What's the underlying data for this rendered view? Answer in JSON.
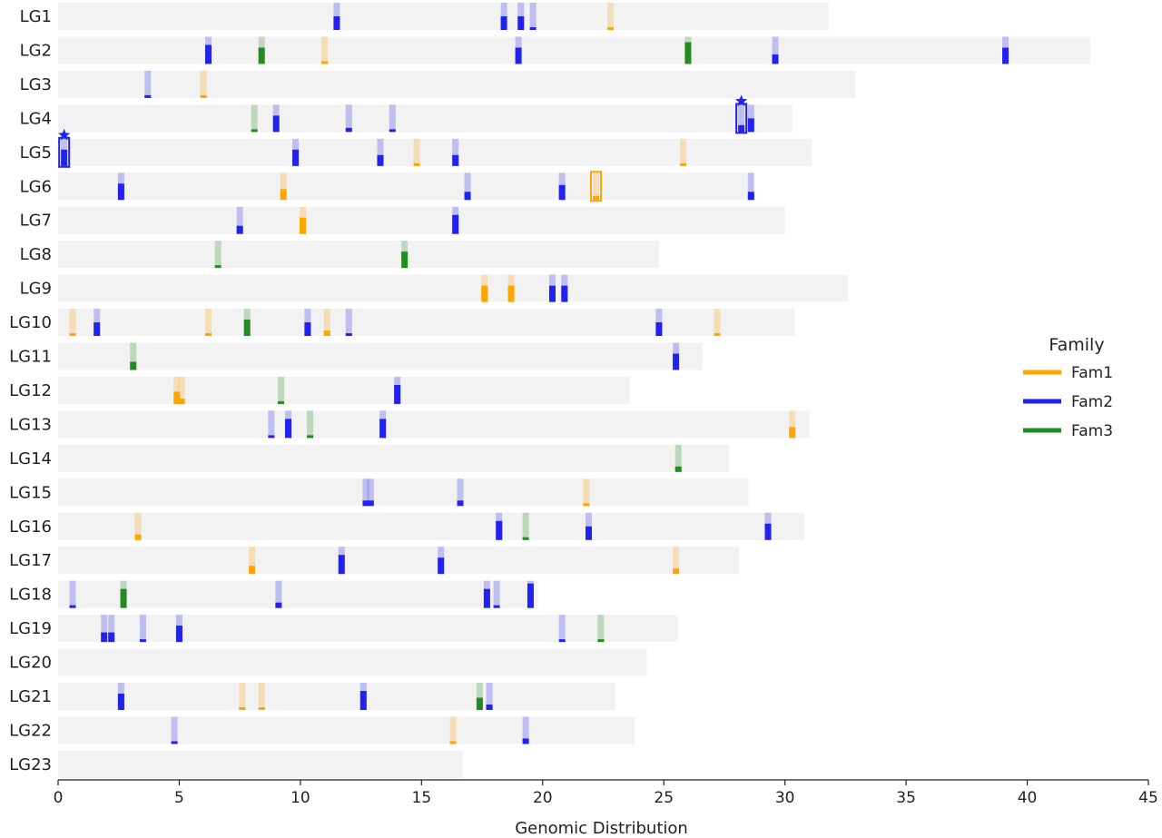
{
  "chart_data": {
    "type": "bar",
    "subtype": "chromosome-ideogram",
    "xlabel": "Genomic Distribution",
    "ylabel": "",
    "xlim": [
      0,
      45
    ],
    "xticks": [
      0,
      5,
      10,
      15,
      20,
      25,
      30,
      35,
      40,
      45
    ],
    "grid": false,
    "legend": {
      "title": "Family",
      "placement": "right",
      "entries": [
        {
          "name": "Fam1",
          "color": "#ffa500"
        },
        {
          "name": "Fam2",
          "color": "#2222ee"
        },
        {
          "name": "Fam3",
          "color": "#228b22"
        }
      ]
    },
    "chromosomes": [
      {
        "name": "LG1",
        "length": 31.8,
        "genes": [
          {
            "pos": 11.5,
            "family": "Fam2",
            "level": 0.5
          },
          {
            "pos": 18.4,
            "family": "Fam2",
            "level": 0.5
          },
          {
            "pos": 19.1,
            "family": "Fam2",
            "level": 0.5
          },
          {
            "pos": 19.6,
            "family": "Fam2",
            "level": 0.1
          },
          {
            "pos": 22.8,
            "family": "Fam1",
            "level": 0.1
          }
        ]
      },
      {
        "name": "LG2",
        "length": 42.6,
        "genes": [
          {
            "pos": 6.2,
            "family": "Fam2",
            "level": 0.7
          },
          {
            "pos": 8.4,
            "family": "Fam3",
            "level": 0.6
          },
          {
            "pos": 11.0,
            "family": "Fam1",
            "level": 0.1
          },
          {
            "pos": 19.0,
            "family": "Fam2",
            "level": 0.6
          },
          {
            "pos": 26.0,
            "family": "Fam3",
            "level": 0.8
          },
          {
            "pos": 29.6,
            "family": "Fam2",
            "level": 0.35
          },
          {
            "pos": 39.1,
            "family": "Fam2",
            "level": 0.6
          }
        ]
      },
      {
        "name": "LG3",
        "length": 32.9,
        "genes": [
          {
            "pos": 3.7,
            "family": "Fam2",
            "level": 0.1
          },
          {
            "pos": 6.0,
            "family": "Fam1",
            "level": 0.1
          }
        ]
      },
      {
        "name": "LG4",
        "length": 30.3,
        "genes": [
          {
            "pos": 8.1,
            "family": "Fam3",
            "level": 0.1
          },
          {
            "pos": 9.0,
            "family": "Fam2",
            "level": 0.6
          },
          {
            "pos": 12.0,
            "family": "Fam2",
            "level": 0.15
          },
          {
            "pos": 13.8,
            "family": "Fam2",
            "level": 0.1
          },
          {
            "pos": 28.2,
            "family": "Fam2",
            "level": 0.25,
            "highlight": true,
            "star": true
          },
          {
            "pos": 28.6,
            "family": "Fam2",
            "level": 0.5
          }
        ]
      },
      {
        "name": "LG5",
        "length": 31.1,
        "genes": [
          {
            "pos": 0.25,
            "family": "Fam2",
            "level": 0.6,
            "highlight": true,
            "star": true
          },
          {
            "pos": 9.8,
            "family": "Fam2",
            "level": 0.6
          },
          {
            "pos": 13.3,
            "family": "Fam2",
            "level": 0.4
          },
          {
            "pos": 14.8,
            "family": "Fam1",
            "level": 0.1
          },
          {
            "pos": 16.4,
            "family": "Fam2",
            "level": 0.4
          },
          {
            "pos": 25.8,
            "family": "Fam1",
            "level": 0.1
          }
        ]
      },
      {
        "name": "LG6",
        "length": 28.7,
        "genes": [
          {
            "pos": 2.6,
            "family": "Fam2",
            "level": 0.6
          },
          {
            "pos": 9.3,
            "family": "Fam1",
            "level": 0.4
          },
          {
            "pos": 16.9,
            "family": "Fam2",
            "level": 0.3
          },
          {
            "pos": 20.8,
            "family": "Fam2",
            "level": 0.55
          },
          {
            "pos": 22.2,
            "family": "Fam1",
            "level": 0.15,
            "highlight": true
          },
          {
            "pos": 28.6,
            "family": "Fam2",
            "level": 0.3
          }
        ]
      },
      {
        "name": "LG7",
        "length": 30.0,
        "genes": [
          {
            "pos": 7.5,
            "family": "Fam2",
            "level": 0.3
          },
          {
            "pos": 10.1,
            "family": "Fam1",
            "level": 0.6
          },
          {
            "pos": 16.4,
            "family": "Fam2",
            "level": 0.7
          }
        ]
      },
      {
        "name": "LG8",
        "length": 24.8,
        "genes": [
          {
            "pos": 6.6,
            "family": "Fam3",
            "level": 0.1
          },
          {
            "pos": 14.3,
            "family": "Fam3",
            "level": 0.6
          }
        ]
      },
      {
        "name": "LG9",
        "length": 32.6,
        "genes": [
          {
            "pos": 17.6,
            "family": "Fam1",
            "level": 0.6
          },
          {
            "pos": 18.7,
            "family": "Fam1",
            "level": 0.6
          },
          {
            "pos": 20.4,
            "family": "Fam2",
            "level": 0.6
          },
          {
            "pos": 20.9,
            "family": "Fam2",
            "level": 0.6
          }
        ]
      },
      {
        "name": "LG10",
        "length": 30.4,
        "genes": [
          {
            "pos": 0.6,
            "family": "Fam1",
            "level": 0.1
          },
          {
            "pos": 1.6,
            "family": "Fam2",
            "level": 0.5
          },
          {
            "pos": 6.2,
            "family": "Fam1",
            "level": 0.1
          },
          {
            "pos": 7.8,
            "family": "Fam3",
            "level": 0.6
          },
          {
            "pos": 10.3,
            "family": "Fam2",
            "level": 0.5
          },
          {
            "pos": 11.1,
            "family": "Fam1",
            "level": 0.2
          },
          {
            "pos": 12.0,
            "family": "Fam2",
            "level": 0.1
          },
          {
            "pos": 24.8,
            "family": "Fam2",
            "level": 0.5
          },
          {
            "pos": 27.2,
            "family": "Fam1",
            "level": 0.1
          }
        ]
      },
      {
        "name": "LG11",
        "length": 26.6,
        "genes": [
          {
            "pos": 3.1,
            "family": "Fam3",
            "level": 0.3
          },
          {
            "pos": 25.5,
            "family": "Fam2",
            "level": 0.6
          }
        ]
      },
      {
        "name": "LG12",
        "length": 23.6,
        "genes": [
          {
            "pos": 4.9,
            "family": "Fam1",
            "level": 0.45
          },
          {
            "pos": 5.1,
            "family": "Fam1",
            "level": 0.2
          },
          {
            "pos": 9.2,
            "family": "Fam3",
            "level": 0.1
          },
          {
            "pos": 14.0,
            "family": "Fam2",
            "level": 0.7
          }
        ]
      },
      {
        "name": "LG13",
        "length": 31.0,
        "genes": [
          {
            "pos": 8.8,
            "family": "Fam2",
            "level": 0.1
          },
          {
            "pos": 9.5,
            "family": "Fam2",
            "level": 0.7
          },
          {
            "pos": 10.4,
            "family": "Fam3",
            "level": 0.1
          },
          {
            "pos": 13.4,
            "family": "Fam2",
            "level": 0.7
          },
          {
            "pos": 30.3,
            "family": "Fam1",
            "level": 0.4
          }
        ]
      },
      {
        "name": "LG14",
        "length": 27.7,
        "genes": [
          {
            "pos": 25.6,
            "family": "Fam3",
            "level": 0.2
          }
        ]
      },
      {
        "name": "LG15",
        "length": 28.5,
        "genes": [
          {
            "pos": 12.7,
            "family": "Fam2",
            "level": 0.2
          },
          {
            "pos": 12.9,
            "family": "Fam2",
            "level": 0.2
          },
          {
            "pos": 16.6,
            "family": "Fam2",
            "level": 0.2
          },
          {
            "pos": 21.8,
            "family": "Fam1",
            "level": 0.1
          }
        ]
      },
      {
        "name": "LG16",
        "length": 30.8,
        "genes": [
          {
            "pos": 3.3,
            "family": "Fam1",
            "level": 0.2
          },
          {
            "pos": 18.2,
            "family": "Fam2",
            "level": 0.7
          },
          {
            "pos": 19.3,
            "family": "Fam3",
            "level": 0.1
          },
          {
            "pos": 21.9,
            "family": "Fam2",
            "level": 0.5
          },
          {
            "pos": 29.3,
            "family": "Fam2",
            "level": 0.6
          }
        ]
      },
      {
        "name": "LG17",
        "length": 28.1,
        "genes": [
          {
            "pos": 8.0,
            "family": "Fam1",
            "level": 0.3
          },
          {
            "pos": 11.7,
            "family": "Fam2",
            "level": 0.7
          },
          {
            "pos": 15.8,
            "family": "Fam2",
            "level": 0.6
          },
          {
            "pos": 25.5,
            "family": "Fam1",
            "level": 0.2
          }
        ]
      },
      {
        "name": "LG18",
        "length": 19.8,
        "genes": [
          {
            "pos": 0.6,
            "family": "Fam2",
            "level": 0.1
          },
          {
            "pos": 2.7,
            "family": "Fam3",
            "level": 0.7
          },
          {
            "pos": 9.1,
            "family": "Fam2",
            "level": 0.2
          },
          {
            "pos": 17.7,
            "family": "Fam2",
            "level": 0.7
          },
          {
            "pos": 18.1,
            "family": "Fam2",
            "level": 0.1
          },
          {
            "pos": 19.5,
            "family": "Fam2",
            "level": 0.9
          }
        ]
      },
      {
        "name": "LG19",
        "length": 25.6,
        "genes": [
          {
            "pos": 1.9,
            "family": "Fam2",
            "level": 0.35
          },
          {
            "pos": 2.2,
            "family": "Fam2",
            "level": 0.35
          },
          {
            "pos": 3.5,
            "family": "Fam2",
            "level": 0.1
          },
          {
            "pos": 5.0,
            "family": "Fam2",
            "level": 0.6
          },
          {
            "pos": 20.8,
            "family": "Fam2",
            "level": 0.1
          },
          {
            "pos": 22.4,
            "family": "Fam3",
            "level": 0.1
          }
        ]
      },
      {
        "name": "LG20",
        "length": 24.3,
        "genes": []
      },
      {
        "name": "LG21",
        "length": 23.0,
        "genes": [
          {
            "pos": 2.6,
            "family": "Fam2",
            "level": 0.6
          },
          {
            "pos": 7.6,
            "family": "Fam1",
            "level": 0.1
          },
          {
            "pos": 8.4,
            "family": "Fam1",
            "level": 0.1
          },
          {
            "pos": 12.6,
            "family": "Fam2",
            "level": 0.7
          },
          {
            "pos": 17.4,
            "family": "Fam3",
            "level": 0.45
          },
          {
            "pos": 17.8,
            "family": "Fam2",
            "level": 0.2
          }
        ]
      },
      {
        "name": "LG22",
        "length": 23.8,
        "genes": [
          {
            "pos": 4.8,
            "family": "Fam2",
            "level": 0.1
          },
          {
            "pos": 16.3,
            "family": "Fam1",
            "level": 0.1
          },
          {
            "pos": 19.3,
            "family": "Fam2",
            "level": 0.2
          }
        ]
      },
      {
        "name": "LG23",
        "length": 16.7,
        "genes": []
      }
    ]
  }
}
